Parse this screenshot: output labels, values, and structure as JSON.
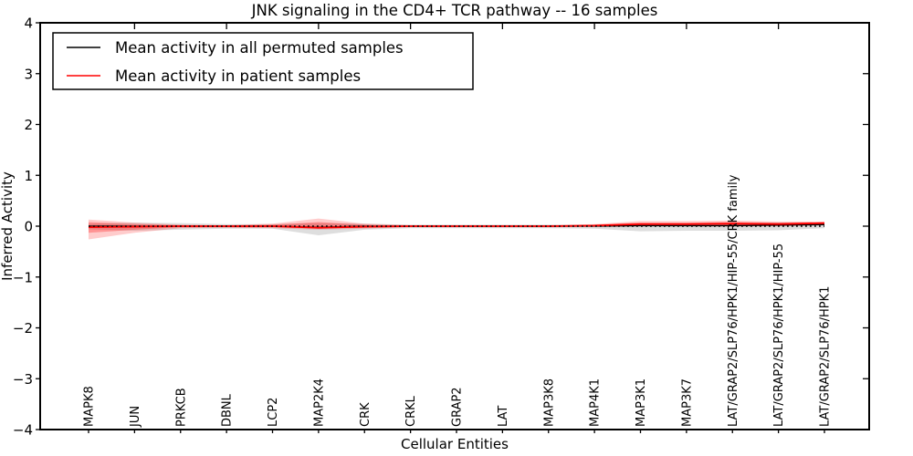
{
  "figure": {
    "title": "JNK signaling in the CD4+ TCR pathway -- 16 samples",
    "xlabel": "Cellular Entities",
    "ylabel": "Inferred Activity",
    "legend": [
      {
        "label": "Mean activity in all permuted samples",
        "color": "#000000"
      },
      {
        "label": "Mean activity in patient samples",
        "color": "#ff0000"
      }
    ]
  },
  "chart_data": {
    "type": "line",
    "title": "JNK signaling in the CD4+ TCR pathway -- 16 samples",
    "xlabel": "Cellular Entities",
    "ylabel": "Inferred Activity",
    "ylim": [
      -4,
      4
    ],
    "yticks": [
      4,
      3,
      2,
      1,
      0,
      -1,
      -2,
      -3,
      -4
    ],
    "ytick_labels": [
      "4",
      "3",
      "2",
      "1",
      "0",
      "−1",
      "−2",
      "−3",
      "−4"
    ],
    "grid": false,
    "legend_position": "upper left",
    "zero_reference_line": 0,
    "categories": [
      "MAPK8",
      "JUN",
      "PRKCB",
      "DBNL",
      "LCP2",
      "MAP2K4",
      "CRK",
      "CRKL",
      "GRAP2",
      "LAT",
      "MAP3K8",
      "MAP4K1",
      "MAP3K1",
      "MAP3K7",
      "LAT/GRAP2/SLP76/HPK1/HIP-55/CRK family",
      "LAT/GRAP2/SLP76/HPK1/HIP-55",
      "LAT/GRAP2/SLP76/HPK1"
    ],
    "series": [
      {
        "name": "Mean activity in all permuted samples",
        "color": "#000000",
        "width": 1.3,
        "values": [
          0.0,
          0.0,
          0.0,
          0.0,
          0.0,
          -0.02,
          0.0,
          0.0,
          0.0,
          0.0,
          0.0,
          0.0,
          0.01,
          0.01,
          0.01,
          0.02,
          0.03
        ]
      },
      {
        "name": "Mean activity in patient samples",
        "color": "#ff0000",
        "width": 1.8,
        "values": [
          -0.02,
          -0.01,
          0.0,
          0.0,
          0.0,
          -0.03,
          -0.01,
          0.0,
          0.0,
          0.0,
          0.0,
          0.01,
          0.04,
          0.04,
          0.05,
          0.04,
          0.06
        ]
      }
    ],
    "bands": [
      {
        "name": "permuted-samples-range",
        "color": "rgba(0,0,0,0.13)",
        "upper": [
          0.05,
          0.07,
          0.06,
          0.04,
          0.04,
          0.06,
          0.05,
          0.03,
          0.03,
          0.03,
          0.03,
          0.03,
          0.04,
          0.05,
          0.06,
          0.07,
          0.06
        ],
        "lower": [
          -0.06,
          -0.09,
          -0.07,
          -0.05,
          -0.05,
          -0.18,
          -0.07,
          -0.04,
          -0.04,
          -0.04,
          -0.04,
          -0.05,
          -0.1,
          -0.09,
          -0.09,
          -0.08,
          -0.04
        ]
      },
      {
        "name": "patient-samples-range-outer",
        "color": "rgba(255,0,0,0.20)",
        "upper": [
          0.13,
          0.07,
          0.03,
          0.02,
          0.05,
          0.15,
          0.05,
          0.02,
          0.02,
          0.02,
          0.02,
          0.04,
          0.1,
          0.1,
          0.11,
          0.09,
          0.09
        ],
        "lower": [
          -0.26,
          -0.13,
          -0.04,
          -0.03,
          -0.04,
          -0.07,
          -0.05,
          -0.02,
          -0.02,
          -0.02,
          -0.02,
          -0.01,
          0.0,
          0.0,
          -0.01,
          0.0,
          0.02
        ]
      },
      {
        "name": "patient-samples-range-inner",
        "color": "rgba(255,0,0,0.28)",
        "upper": [
          0.08,
          0.04,
          0.02,
          0.01,
          0.03,
          0.08,
          0.03,
          0.01,
          0.01,
          0.01,
          0.01,
          0.03,
          0.07,
          0.07,
          0.08,
          0.07,
          0.08
        ],
        "lower": [
          -0.13,
          -0.07,
          -0.02,
          -0.02,
          -0.02,
          -0.05,
          -0.03,
          -0.01,
          -0.01,
          -0.01,
          -0.01,
          0.0,
          0.01,
          0.01,
          0.02,
          0.01,
          0.03
        ]
      }
    ]
  }
}
